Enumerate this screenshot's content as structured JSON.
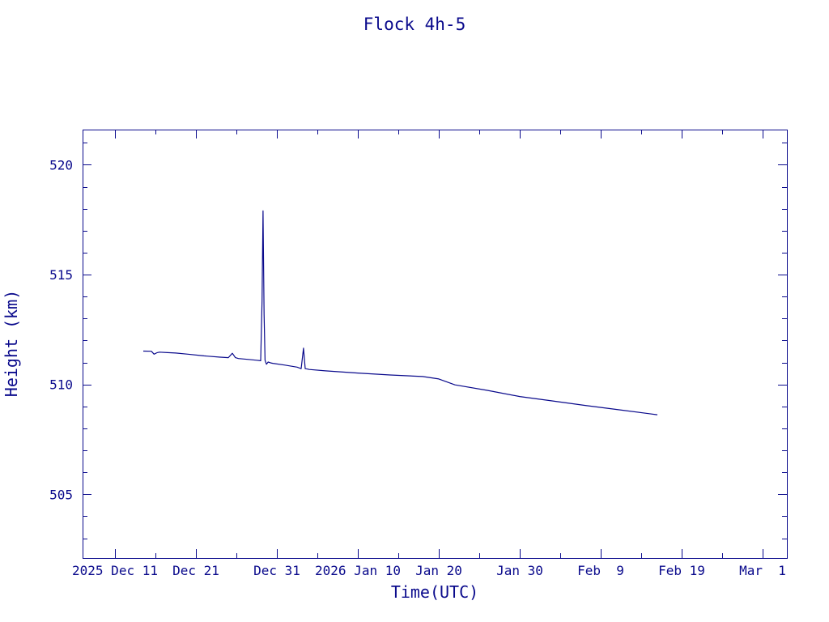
{
  "chart_data": {
    "type": "line",
    "title": "Flock 4h-5",
    "xlabel": "Time(UTC)",
    "ylabel": "Height (km)",
    "x_unit": "date (UTC)",
    "xlim": [
      "2025-12-07",
      "2026-03-04"
    ],
    "ylim": [
      502.1,
      521.6
    ],
    "x_ticks": [
      {
        "date": "2025-12-11",
        "label": "2025 Dec 11"
      },
      {
        "date": "2025-12-21",
        "label": "Dec 21"
      },
      {
        "date": "2025-12-31",
        "label": "Dec 31"
      },
      {
        "date": "2026-01-10",
        "label": "2026 Jan 10"
      },
      {
        "date": "2026-01-20",
        "label": "Jan 20"
      },
      {
        "date": "2026-01-30",
        "label": "Jan 30"
      },
      {
        "date": "2026-02-09",
        "label": "Feb  9"
      },
      {
        "date": "2026-02-19",
        "label": "Feb 19"
      },
      {
        "date": "2026-03-01",
        "label": "Mar  1"
      }
    ],
    "y_ticks": [
      {
        "value": 505,
        "label": "505"
      },
      {
        "value": 510,
        "label": "510"
      },
      {
        "value": 515,
        "label": "515"
      },
      {
        "value": 520,
        "label": "520"
      }
    ],
    "y_minor_step": 1,
    "x_minor_step_days": 5,
    "grid": false,
    "legend": "none",
    "series": [
      {
        "x": [
          "2025-12-14T12:00",
          "2025-12-15T12:00",
          "2025-12-15T20:00",
          "2025-12-16T04:00",
          "2025-12-16T12:00",
          "2025-12-17T12:00",
          "2025-12-18T12:00",
          "2025-12-20T00:00",
          "2025-12-22T00:00",
          "2025-12-24T00:00",
          "2025-12-25T00:00",
          "2025-12-25T12:00",
          "2025-12-25T21:00",
          "2025-12-26T06:00",
          "2025-12-27T12:00",
          "2025-12-28T12:00",
          "2025-12-29T00:00",
          "2025-12-29T04:00",
          "2025-12-29T07:00",
          "2025-12-29T10:00",
          "2025-12-29T13:00",
          "2025-12-29T17:00",
          "2025-12-29T22:00",
          "2025-12-30T06:00",
          "2025-12-30T12:00",
          "2026-01-01T00:00",
          "2026-01-02T12:00",
          "2026-01-03T00:00",
          "2026-01-03T07:00",
          "2026-01-03T12:00",
          "2026-01-03T19:00",
          "2026-01-04T00:00",
          "2026-01-06T00:00",
          "2026-01-10T00:00",
          "2026-01-14T00:00",
          "2026-01-18T00:00",
          "2026-01-20T00:00",
          "2026-01-22T00:00",
          "2026-01-26T00:00",
          "2026-01-30T00:00",
          "2026-02-03T00:00",
          "2026-02-07T00:00",
          "2026-02-11T00:00",
          "2026-02-15T00:00",
          "2026-02-16T00:00"
        ],
        "y": [
          511.52,
          511.51,
          511.38,
          511.44,
          511.47,
          511.45,
          511.43,
          511.38,
          511.3,
          511.24,
          511.22,
          511.42,
          511.22,
          511.18,
          511.14,
          511.1,
          511.08,
          513.8,
          517.9,
          513.2,
          511.1,
          510.92,
          511.02,
          510.98,
          510.96,
          510.88,
          510.79,
          510.72,
          511.65,
          510.72,
          510.7,
          510.68,
          510.62,
          510.52,
          510.43,
          510.36,
          510.25,
          509.98,
          509.73,
          509.45,
          509.25,
          509.05,
          508.86,
          508.67,
          508.62
        ]
      }
    ]
  }
}
